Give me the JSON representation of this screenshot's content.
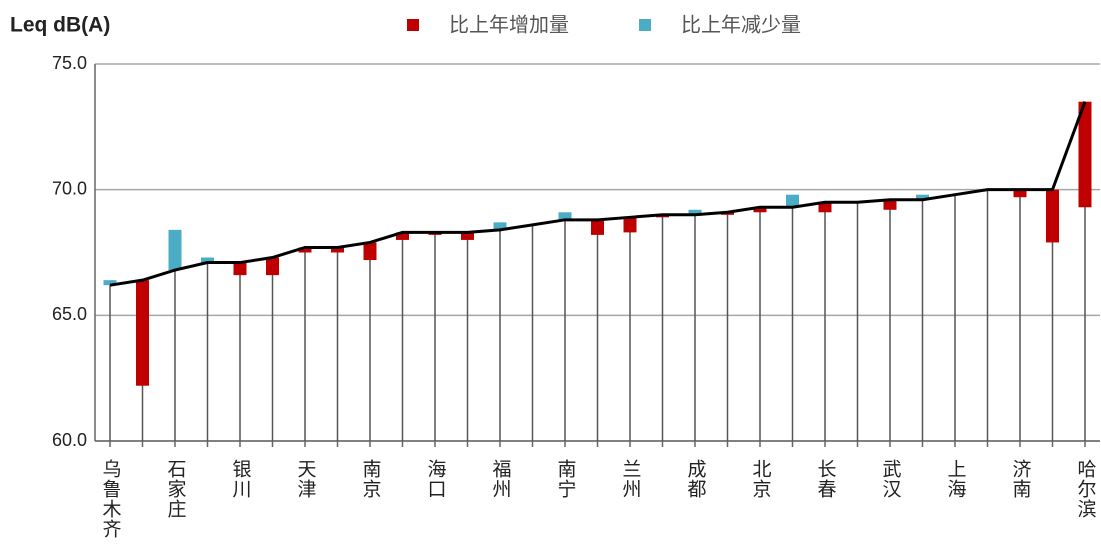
{
  "chart_data": {
    "type": "line-change",
    "y_axis_label": "Leq dB(A)",
    "categories": [
      "乌鲁木齐",
      null,
      "石家庄",
      null,
      "银川",
      null,
      "天津",
      null,
      "南京",
      null,
      "海口",
      null,
      "福州",
      null,
      "南宁",
      null,
      "兰州",
      null,
      "成都",
      null,
      "北京",
      null,
      "长春",
      null,
      "武汉",
      null,
      "上海",
      null,
      "济南",
      null,
      "哈尔滨"
    ],
    "line": {
      "color": "#000000",
      "values": [
        66.2,
        66.4,
        66.8,
        67.1,
        67.1,
        67.3,
        67.7,
        67.7,
        67.9,
        68.3,
        68.3,
        68.3,
        68.4,
        68.6,
        68.8,
        68.8,
        68.9,
        69.0,
        69.0,
        69.1,
        69.3,
        69.3,
        69.5,
        69.5,
        69.6,
        69.6,
        69.8,
        70.0,
        70.0,
        70.0,
        73.5
      ]
    },
    "series": [
      {
        "name": "比上年增加量",
        "color": "#c00000",
        "direction": "increase",
        "values": [
          null,
          4.2,
          null,
          null,
          0.5,
          0.7,
          0.2,
          0.2,
          0.7,
          0.3,
          0.1,
          0.3,
          null,
          null,
          null,
          0.6,
          0.6,
          0.1,
          null,
          0.1,
          0.2,
          null,
          0.4,
          null,
          0.4,
          null,
          null,
          null,
          0.3,
          2.1,
          4.2
        ]
      },
      {
        "name": "比上年减少量",
        "color": "#4bacc6",
        "direction": "decrease",
        "values": [
          0.2,
          null,
          1.6,
          0.2,
          null,
          null,
          null,
          null,
          null,
          null,
          null,
          null,
          0.3,
          null,
          0.3,
          null,
          null,
          null,
          0.2,
          null,
          null,
          0.5,
          null,
          null,
          null,
          0.2,
          null,
          null,
          null,
          null,
          null
        ]
      }
    ],
    "ylim": [
      60,
      75
    ],
    "yticks": [
      {
        "value": 60,
        "label": "60.0"
      },
      {
        "value": 65,
        "label": "65.0"
      },
      {
        "value": 70,
        "label": "70.0"
      },
      {
        "value": 75,
        "label": "75.0"
      }
    ],
    "grid": true
  }
}
